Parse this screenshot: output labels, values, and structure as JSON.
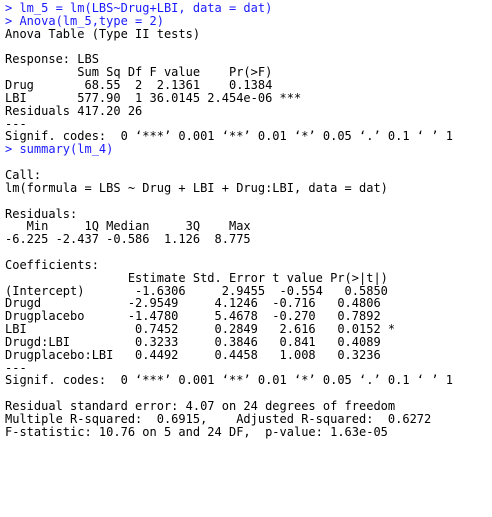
{
  "colors": {
    "background": "#ffffff",
    "command_text": "#1a1aff",
    "output_text": "#000000"
  },
  "console": {
    "lines": [
      {
        "kind": "cmd",
        "text": "> lm_5 = lm(LBS~Drug+LBI, data = dat)"
      },
      {
        "kind": "cmd",
        "text": "> Anova(lm_5,type = 2)"
      },
      {
        "kind": "out",
        "text": "Anova Table (Type II tests)"
      },
      {
        "kind": "out",
        "text": ""
      },
      {
        "kind": "out",
        "text": "Response: LBS"
      },
      {
        "kind": "out",
        "text": "          Sum Sq Df F value    Pr(>F)    "
      },
      {
        "kind": "out",
        "text": "Drug       68.55  2  2.1361    0.1384    "
      },
      {
        "kind": "out",
        "text": "LBI       577.90  1 36.0145 2.454e-06 ***"
      },
      {
        "kind": "out",
        "text": "Residuals 417.20 26                      "
      },
      {
        "kind": "out",
        "text": "---"
      },
      {
        "kind": "out",
        "text": "Signif. codes:  0 ‘***’ 0.001 ‘**’ 0.01 ‘*’ 0.05 ‘.’ 0.1 ‘ ’ 1"
      },
      {
        "kind": "cmd",
        "text": "> summary(lm_4)"
      },
      {
        "kind": "out",
        "text": ""
      },
      {
        "kind": "out",
        "text": "Call:"
      },
      {
        "kind": "out",
        "text": "lm(formula = LBS ~ Drug + LBI + Drug:LBI, data = dat)"
      },
      {
        "kind": "out",
        "text": ""
      },
      {
        "kind": "out",
        "text": "Residuals:"
      },
      {
        "kind": "out",
        "text": "   Min     1Q Median     3Q    Max "
      },
      {
        "kind": "out",
        "text": "-6.225 -2.437 -0.586  1.126  8.775 "
      },
      {
        "kind": "out",
        "text": ""
      },
      {
        "kind": "out",
        "text": "Coefficients:"
      },
      {
        "kind": "out",
        "text": "                 Estimate Std. Error t value Pr(>|t|)  "
      },
      {
        "kind": "out",
        "text": "(Intercept)       -1.6306     2.9455  -0.554   0.5850  "
      },
      {
        "kind": "out",
        "text": "Drugd            -2.9549     4.1246  -0.716   0.4806  "
      },
      {
        "kind": "out",
        "text": "Drugplacebo      -1.4780     5.4678  -0.270   0.7892  "
      },
      {
        "kind": "out",
        "text": "LBI               0.7452     0.2849   2.616   0.0152 *"
      },
      {
        "kind": "out",
        "text": "Drugd:LBI         0.3233     0.3846   0.841   0.4089  "
      },
      {
        "kind": "out",
        "text": "Drugplacebo:LBI   0.4492     0.4458   1.008   0.3236  "
      },
      {
        "kind": "out",
        "text": "---"
      },
      {
        "kind": "out",
        "text": "Signif. codes:  0 ‘***’ 0.001 ‘**’ 0.01 ‘*’ 0.05 ‘.’ 0.1 ‘ ’ 1"
      },
      {
        "kind": "out",
        "text": ""
      },
      {
        "kind": "out",
        "text": "Residual standard error: 4.07 on 24 degrees of freedom"
      },
      {
        "kind": "out",
        "text": "Multiple R-squared:  0.6915,\tAdjusted R-squared:  0.6272 "
      },
      {
        "kind": "out",
        "text": "F-statistic: 10.76 on 5 and 24 DF,  p-value: 1.63e-05"
      }
    ]
  }
}
